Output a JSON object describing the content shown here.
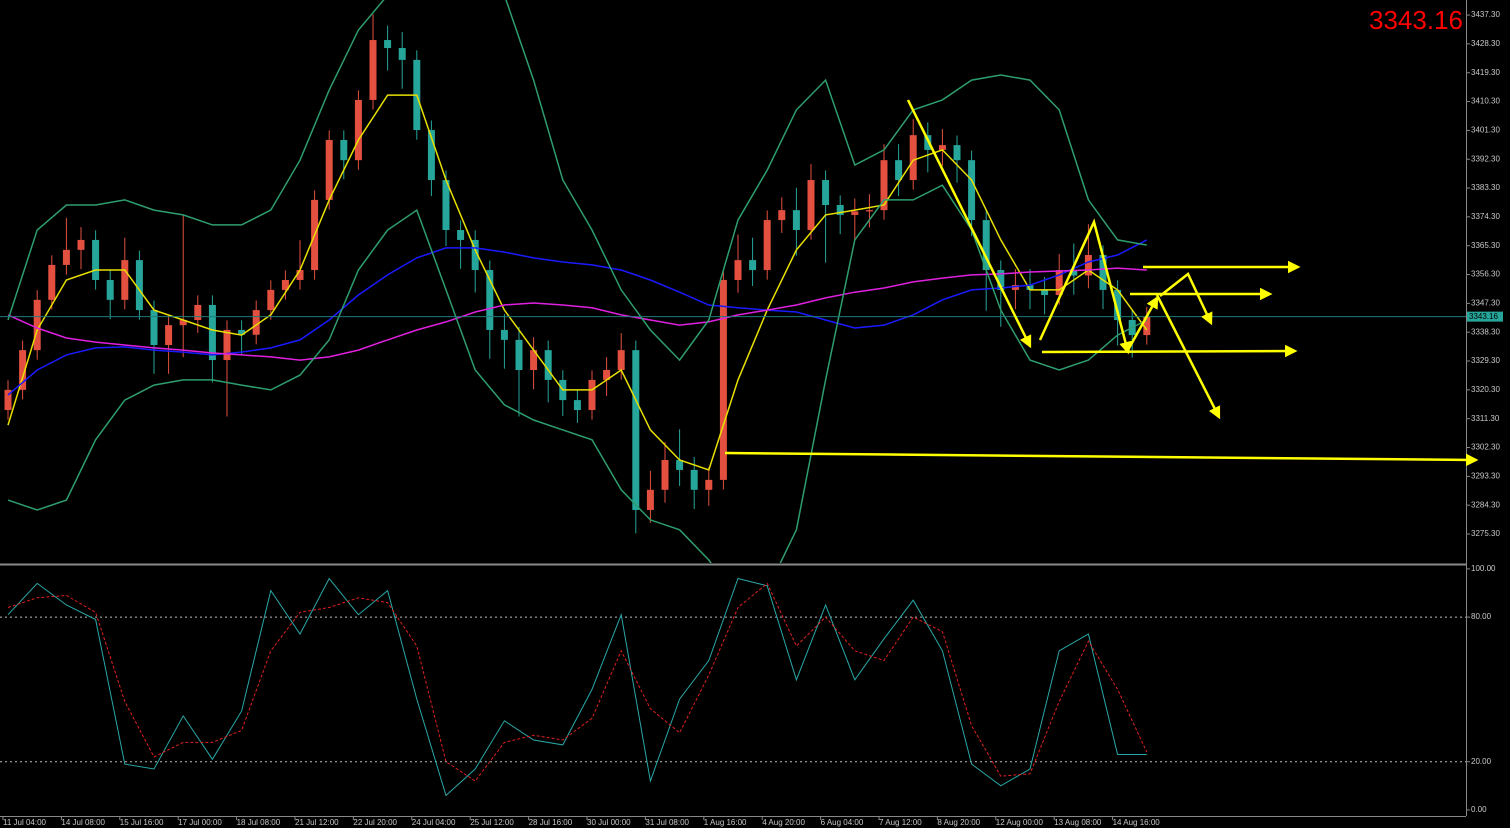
{
  "chart_data": [
    {
      "type": "candlestick",
      "categories": [
        "11 Jul 04:00",
        null,
        null,
        null,
        "14 Jul 08:00",
        null,
        null,
        null,
        "15 Jul 16:00",
        null,
        null,
        null,
        "17 Jul 00:00",
        null,
        null,
        null,
        "18 Jul 08:00",
        null,
        null,
        null,
        "21 Jul 12:00",
        null,
        null,
        null,
        "22 Jul 20:00",
        null,
        null,
        null,
        "24 Jul 04:00",
        null,
        null,
        null,
        "25 Jul 12:00",
        null,
        null,
        null,
        "28 Jul 16:00",
        null,
        null,
        null,
        "30 Jul 00:00",
        null,
        null,
        null,
        "31 Jul 08:00",
        null,
        null,
        null,
        "1 Aug 16:00",
        null,
        null,
        null,
        "4 Aug 20:00",
        null,
        null,
        null,
        "6 Aug 04:00",
        null,
        null,
        null,
        "7 Aug 12:00",
        null,
        null,
        null,
        "8 Aug 20:00",
        null,
        null,
        null,
        "12 Aug 00:00",
        null,
        null,
        null,
        "13 Aug 08:00",
        null,
        null,
        null,
        "14 Aug 16:00",
        null,
        null
      ],
      "open": [
        3314.0,
        3320.3,
        3332.7,
        3348.4,
        3359.3,
        3364.0,
        3367.1,
        3354.6,
        3348.4,
        3360.8,
        3345.2,
        3334.3,
        3340.5,
        3342.1,
        3346.8,
        3329.6,
        3339.0,
        3337.5,
        3345.2,
        3351.5,
        3354.6,
        3357.7,
        3379.6,
        3398.3,
        3392.0,
        3410.8,
        3429.5,
        3427.0,
        3423.3,
        3401.4,
        3385.8,
        3370.2,
        3367.1,
        3357.7,
        3339.0,
        3335.9,
        3326.5,
        3332.7,
        3323.4,
        3317.1,
        3314.0,
        3323.4,
        3326.5,
        3332.7,
        3282.8,
        3289.1,
        3298.4,
        3295.3,
        3289.1,
        3292.2,
        3354.6,
        3360.8,
        3357.7,
        3373.3,
        3376.4,
        3370.2,
        3385.8,
        3378.0,
        3374.9,
        3376.0,
        3376.4,
        3392.0,
        3385.8,
        3399.8,
        3395.2,
        3396.7,
        3392.0,
        3373.3,
        3357.7,
        3351.5,
        3353.0,
        3351.5,
        3349.9,
        3357.7,
        3356.0,
        3362.4,
        3351.5,
        3342.1,
        3337.4
      ],
      "high": [
        3323.3,
        3335.7,
        3351.4,
        3362.3,
        3374.0,
        3371.1,
        3370.1,
        3357.6,
        3367.8,
        3363.8,
        3348.2,
        3343.5,
        3375.0,
        3349.8,
        3349.8,
        3342.0,
        3342.0,
        3348.2,
        3354.5,
        3357.6,
        3367.0,
        3382.6,
        3401.3,
        3401.3,
        3413.8,
        3437.5,
        3434.0,
        3432.0,
        3426.3,
        3404.4,
        3388.8,
        3373.2,
        3370.1,
        3360.7,
        3344.0,
        3340.0,
        3336.7,
        3335.7,
        3326.4,
        3320.1,
        3326.4,
        3330.5,
        3338.0,
        3335.7,
        3295.0,
        3304.0,
        3308.0,
        3299.3,
        3296.2,
        3357.6,
        3368.8,
        3367.8,
        3376.3,
        3380.4,
        3383.4,
        3390.8,
        3388.8,
        3381.0,
        3380.0,
        3381.4,
        3397.0,
        3397.0,
        3404.8,
        3403.8,
        3401.7,
        3399.7,
        3395.0,
        3376.3,
        3360.7,
        3358.0,
        3358.0,
        3355.5,
        3362.7,
        3366.0,
        3372.0,
        3365.4,
        3354.5,
        3345.1,
        3346.2
      ],
      "low": [
        3311.0,
        3317.3,
        3329.7,
        3345.4,
        3356.3,
        3358.0,
        3351.6,
        3342.4,
        3345.4,
        3342.2,
        3325.3,
        3325.3,
        3330.5,
        3338.1,
        3322.6,
        3312.0,
        3331.5,
        3334.5,
        3342.2,
        3348.5,
        3351.6,
        3354.7,
        3376.6,
        3386.0,
        3389.0,
        3407.8,
        3420.0,
        3414.3,
        3398.4,
        3380.8,
        3365.2,
        3358.1,
        3350.7,
        3330.0,
        3326.9,
        3312.0,
        3320.5,
        3316.4,
        3312.1,
        3310.0,
        3311.0,
        3318.4,
        3323.5,
        3275.5,
        3278.8,
        3285.1,
        3290.3,
        3283.1,
        3284.1,
        3289.2,
        3350.6,
        3352.7,
        3354.7,
        3369.3,
        3362.2,
        3367.2,
        3360.0,
        3368.9,
        3366.9,
        3371.0,
        3373.4,
        3380.8,
        3382.8,
        3388.2,
        3390.2,
        3385.0,
        3368.3,
        3345.0,
        3340.0,
        3345.5,
        3345.5,
        3343.9,
        3346.9,
        3350.0,
        3352.0,
        3345.5,
        3334.1,
        3330.4,
        3334.4
      ],
      "close": [
        3320.3,
        3332.7,
        3348.4,
        3359.3,
        3364.0,
        3367.1,
        3354.6,
        3348.4,
        3360.8,
        3345.2,
        3334.3,
        3340.5,
        3342.1,
        3346.8,
        3329.6,
        3339.0,
        3337.5,
        3345.2,
        3351.5,
        3354.6,
        3357.7,
        3379.6,
        3398.3,
        3392.0,
        3410.8,
        3429.5,
        3427.0,
        3423.3,
        3401.4,
        3385.8,
        3370.2,
        3367.1,
        3357.7,
        3339.0,
        3335.9,
        3326.5,
        3332.7,
        3323.4,
        3317.1,
        3314.0,
        3323.4,
        3326.5,
        3332.7,
        3282.8,
        3289.1,
        3298.4,
        3295.3,
        3289.1,
        3292.2,
        3354.6,
        3360.8,
        3357.7,
        3373.3,
        3376.4,
        3370.2,
        3385.8,
        3378.0,
        3374.9,
        3376.0,
        3376.4,
        3392.0,
        3385.8,
        3399.8,
        3395.2,
        3396.7,
        3392.0,
        3373.3,
        3357.7,
        3351.5,
        3353.0,
        3351.5,
        3349.9,
        3357.7,
        3356.0,
        3362.4,
        3351.5,
        3342.1,
        3337.4,
        3343.2
      ],
      "up_color": "#e4503f",
      "down_color": "#26a69a",
      "indicators": [
        {
          "color": "#e8e000",
          "values": [
            3309.3,
            3339.0,
            3354.6,
            3357.7,
            3357.7,
            3345.2,
            3342.1,
            3339.0,
            3337.4,
            3343.7,
            3357.7,
            3379.6,
            3398.3,
            3412.3,
            3412.3,
            3385.8,
            3364.0,
            3345.2,
            3332.7,
            3320.3,
            3320.3,
            3326.5,
            3307.8,
            3298.4,
            3295.3,
            3323.4,
            3345.2,
            3364.0,
            3374.9,
            3376.4,
            3378.0,
            3392.0,
            3395.2,
            3385.8,
            3367.1,
            3351.5,
            3351.5,
            3357.7,
            3351.5,
            3339.0
          ]
        },
        {
          "color": "#1a1aff",
          "values": [
            3318.7,
            3326.5,
            3331.2,
            3333.4,
            3333.7,
            3332.7,
            3332.1,
            3331.2,
            3332.1,
            3333.4,
            3335.9,
            3342.1,
            3349.9,
            3356.2,
            3361.5,
            3364.6,
            3364.6,
            3363.3,
            3361.5,
            3360.2,
            3359.3,
            3357.7,
            3354.6,
            3350.8,
            3346.8,
            3345.9,
            3345.2,
            3344.6,
            3342.1,
            3339.6,
            3340.5,
            3343.7,
            3348.4,
            3351.5,
            3352.1,
            3353.0,
            3356.2,
            3360.2,
            3362.4,
            3367.1
          ]
        },
        {
          "color": "#e020e0",
          "values": [
            3343.7,
            3339.6,
            3336.5,
            3335.2,
            3334.3,
            3333.4,
            3332.7,
            3331.8,
            3331.2,
            3330.6,
            3329.6,
            3330.6,
            3332.7,
            3335.9,
            3339.0,
            3341.5,
            3344.6,
            3346.8,
            3347.4,
            3346.8,
            3345.9,
            3343.7,
            3342.1,
            3340.5,
            3341.5,
            3343.7,
            3345.2,
            3346.8,
            3349.0,
            3350.8,
            3352.1,
            3354.0,
            3355.2,
            3356.2,
            3356.5,
            3357.1,
            3357.4,
            3357.7,
            3358.3,
            3357.7
          ]
        },
        {
          "color": "#2e9e6e",
          "values": [
            3342.1,
            3370.2,
            3378.0,
            3378.0,
            3379.6,
            3376.4,
            3374.9,
            3371.8,
            3371.8,
            3376.4,
            3392.0,
            3413.9,
            3432.6,
            3443.5,
            3451.3,
            3451.3,
            3448.2,
            3443.5,
            3417.0,
            3385.8,
            3370.2,
            3351.5,
            3339.0,
            3329.6,
            3342.1,
            3373.3,
            3388.9,
            3407.7,
            3417.0,
            3390.5,
            3395.2,
            3407.7,
            3410.8,
            3417.0,
            3418.6,
            3417.0,
            3407.7,
            3379.6,
            3367.1,
            3365.5
          ]
        },
        {
          "color": "#2e9e6e",
          "values": [
            3285.9,
            3282.8,
            3285.9,
            3304.7,
            3317.1,
            3321.8,
            3323.4,
            3323.4,
            3321.8,
            3320.3,
            3324.9,
            3335.9,
            3357.7,
            3370.2,
            3376.4,
            3351.5,
            3326.5,
            3315.6,
            3310.9,
            3307.8,
            3304.7,
            3289.1,
            3279.7,
            3276.6,
            3267.2,
            3254.7,
            3257.8,
            3276.6,
            3323.4,
            3367.1,
            3379.6,
            3379.6,
            3384.2,
            3370.2,
            3345.2,
            3329.6,
            3326.5,
            3329.6,
            3337.4,
            3342.1
          ]
        }
      ],
      "current_price": 3343.16,
      "ylim": [
        3266.25,
        3442.0
      ],
      "yticks": [
        {
          "value": 3275.3,
          "label": "3275.30"
        },
        {
          "value": 3284.3,
          "label": "3284.30"
        },
        {
          "value": 3293.3,
          "label": "3293.30"
        },
        {
          "value": 3302.3,
          "label": "3302.30"
        },
        {
          "value": 3311.3,
          "label": "3311.30"
        },
        {
          "value": 3320.3,
          "label": "3320.30"
        },
        {
          "value": 3329.3,
          "label": "3329.30"
        },
        {
          "value": 3338.3,
          "label": "3338.30"
        },
        {
          "value": 3347.3,
          "label": "3347.30"
        },
        {
          "value": 3356.3,
          "label": "3356.30"
        },
        {
          "value": 3365.3,
          "label": "3365.30"
        },
        {
          "value": 3374.3,
          "label": "3374.30"
        },
        {
          "value": 3383.3,
          "label": "3383.30"
        },
        {
          "value": 3392.3,
          "label": "3392.30"
        },
        {
          "value": 3401.3,
          "label": "3401.30"
        },
        {
          "value": 3410.3,
          "label": "3410.30"
        },
        {
          "value": 3419.3,
          "label": "3419.30"
        },
        {
          "value": 3428.3,
          "label": "3428.30"
        },
        {
          "value": 3437.3,
          "label": "3437.30"
        }
      ]
    },
    {
      "type": "line",
      "ylim": [
        -2.1,
        101.2
      ],
      "yticks": [
        {
          "value": 100,
          "label": "100.00"
        },
        {
          "value": 80,
          "label": "80.00"
        },
        {
          "value": 20,
          "label": "20.00"
        },
        {
          "value": 0,
          "label": "0.00"
        }
      ],
      "levels": [
        80,
        20
      ],
      "series": [
        {
          "color": "#2aa8a8",
          "values": [
            81,
            94,
            85,
            79,
            19,
            17,
            39,
            21,
            41,
            91,
            73,
            96,
            81,
            91,
            46,
            6,
            17,
            37,
            29,
            27,
            50,
            81,
            12,
            46,
            62,
            96,
            93,
            54,
            85,
            54,
            71,
            87,
            66,
            19,
            10,
            17,
            66,
            73,
            23,
            23
          ]
        },
        {
          "color": "#e02020",
          "dash": true,
          "values": [
            84,
            88,
            89,
            82,
            45,
            22,
            28,
            28,
            33,
            66,
            82,
            84,
            88,
            86,
            68,
            20,
            12,
            28,
            31,
            29,
            38,
            66,
            42,
            32,
            56,
            84,
            94,
            68,
            80,
            66,
            62,
            80,
            74,
            35,
            14,
            15,
            45,
            70,
            50,
            24
          ]
        }
      ]
    }
  ]
}
